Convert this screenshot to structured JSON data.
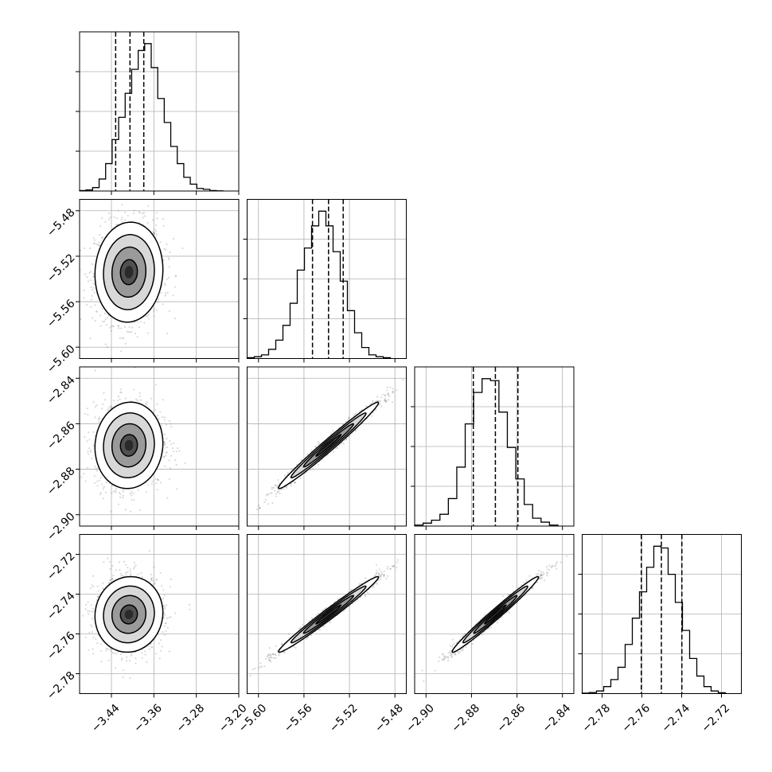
{
  "chart_data": {
    "type": "corner",
    "parameters": [
      {
        "ticks": [
          "−3.44",
          "−3.36",
          "−3.28",
          "−3.20"
        ],
        "tick_values": [
          -3.44,
          -3.36,
          -3.28,
          -3.2
        ],
        "range": [
          -3.5,
          -3.2
        ],
        "quantiles": [
          -3.432,
          -3.405,
          -3.379
        ],
        "hist_counts": [
          0.3,
          0.6,
          2,
          7,
          16,
          30,
          43,
          57,
          71,
          82,
          86,
          72,
          54,
          40,
          26,
          16,
          8,
          4,
          1.5,
          1,
          0.3,
          0.1
        ]
      },
      {
        "ticks": [
          "−5.60",
          "−5.56",
          "−5.52",
          "−5.48"
        ],
        "tick_values": [
          -5.6,
          -5.56,
          -5.52,
          -5.48
        ],
        "range": [
          -5.61,
          -5.47
        ],
        "quantiles": [
          -5.5525,
          -5.5384,
          -5.5255
        ],
        "hist_counts": [
          0.5,
          1,
          2,
          5,
          10,
          18,
          30,
          48,
          60,
          72,
          80,
          72,
          58,
          42,
          26,
          14,
          6,
          2,
          1,
          0.5
        ]
      },
      {
        "ticks": [
          "−2.90",
          "−2.88",
          "−2.86",
          "−2.84"
        ],
        "tick_values": [
          -2.9,
          -2.88,
          -2.86,
          -2.84
        ],
        "range": [
          -2.905,
          -2.835
        ],
        "quantiles": [
          -2.8792,
          -2.8695,
          -2.8596
        ],
        "hist_counts": [
          0.5,
          1.5,
          3,
          6,
          14,
          30,
          52,
          68,
          75,
          74,
          58,
          40,
          24,
          11,
          4,
          2,
          0.5
        ]
      },
      {
        "ticks": [
          "−2.78",
          "−2.76",
          "−2.74",
          "−2.72"
        ],
        "tick_values": [
          -2.78,
          -2.76,
          -2.74,
          -2.72
        ],
        "range": [
          -2.79,
          -2.71
        ],
        "quantiles": [
          -2.7603,
          -2.7502,
          -2.7399
        ],
        "hist_counts": [
          0.3,
          0.6,
          1.5,
          4,
          8,
          15,
          28,
          43,
          58,
          72,
          84,
          83,
          68,
          52,
          36,
          20,
          10,
          4,
          1.5,
          0.5
        ]
      }
    ],
    "grid": true,
    "colors": {
      "line": "#000000",
      "scatter": "#808080",
      "grid": "#b0b0b0"
    },
    "pairs": [
      {
        "row": 1,
        "col": 0,
        "center": [
          -3.407,
          -5.534
        ],
        "sd": [
          0.032,
          0.022
        ],
        "corr": 0.05
      },
      {
        "row": 2,
        "col": 0,
        "center": [
          -3.407,
          -2.8695
        ],
        "sd": [
          0.032,
          0.0095
        ],
        "corr": 0.05
      },
      {
        "row": 2,
        "col": 1,
        "center": [
          -5.5384,
          -2.8695
        ],
        "sd": [
          0.022,
          0.0095
        ],
        "corr": 0.985
      },
      {
        "row": 3,
        "col": 0,
        "center": [
          -3.407,
          -2.7502
        ],
        "sd": [
          0.032,
          0.0095
        ],
        "corr": 0.05
      },
      {
        "row": 3,
        "col": 1,
        "center": [
          -5.5384,
          -2.7502
        ],
        "sd": [
          0.022,
          0.0095
        ],
        "corr": 0.985
      },
      {
        "row": 3,
        "col": 2,
        "center": [
          -2.8695,
          -2.7502
        ],
        "sd": [
          0.0095,
          0.0095
        ],
        "corr": 0.985
      }
    ]
  }
}
